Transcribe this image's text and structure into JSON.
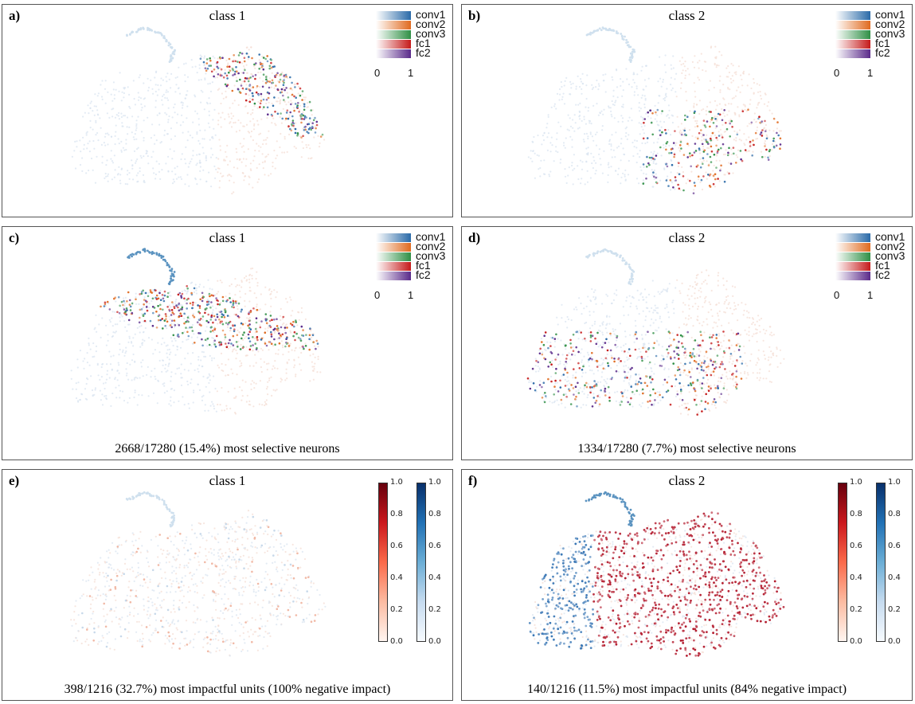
{
  "chart_data": [
    {
      "panel": "a)",
      "type": "scatter",
      "title": "class 1",
      "caption": "",
      "legend": {
        "entries": [
          "conv1",
          "conv2",
          "conv3",
          "fc1",
          "fc2"
        ],
        "colors": [
          "#2a6aa8",
          "#e06a1f",
          "#2f8f45",
          "#c51a1a",
          "#5a2a8a"
        ],
        "ticks": [
          "0",
          "1"
        ],
        "placement": "top-right"
      },
      "highlight": "top-right-band",
      "palette": "layers"
    },
    {
      "panel": "b)",
      "type": "scatter",
      "title": "class 2",
      "caption": "",
      "legend": {
        "entries": [
          "conv1",
          "conv2",
          "conv3",
          "fc1",
          "fc2"
        ],
        "colors": [
          "#2a6aa8",
          "#e06a1f",
          "#2f8f45",
          "#c51a1a",
          "#5a2a8a"
        ],
        "ticks": [
          "0",
          "1"
        ],
        "placement": "top-right"
      },
      "highlight": "bottom-right",
      "palette": "layers"
    },
    {
      "panel": "c)",
      "type": "scatter",
      "title": "class 1",
      "caption": "2668/17280 (15.4%) most selective neurons",
      "legend": {
        "entries": [
          "conv1",
          "conv2",
          "conv3",
          "fc1",
          "fc2"
        ],
        "colors": [
          "#2a6aa8",
          "#e06a1f",
          "#2f8f45",
          "#c51a1a",
          "#5a2a8a"
        ],
        "ticks": [
          "0",
          "1"
        ],
        "placement": "top-right"
      },
      "highlight": "upper-band",
      "palette": "layers"
    },
    {
      "panel": "d)",
      "type": "scatter",
      "title": "class 2",
      "caption": "1334/17280 (7.7%) most selective neurons",
      "legend": {
        "entries": [
          "conv1",
          "conv2",
          "conv3",
          "fc1",
          "fc2"
        ],
        "colors": [
          "#2a6aa8",
          "#e06a1f",
          "#2f8f45",
          "#c51a1a",
          "#5a2a8a"
        ],
        "ticks": [
          "0",
          "1"
        ],
        "placement": "top-right"
      },
      "highlight": "lower-band",
      "palette": "layers"
    },
    {
      "panel": "e)",
      "type": "scatter",
      "title": "class 1",
      "caption": "398/1216 (32.7%) most impactful units (100% negative impact)",
      "colorbars": [
        {
          "colormap": "Reds",
          "range": [
            0.0,
            1.0
          ],
          "ticks": [
            "0.0",
            "0.2",
            "0.4",
            "0.6",
            "0.8",
            "1.0"
          ]
        },
        {
          "colormap": "Blues",
          "range": [
            0.0,
            1.0
          ],
          "ticks": [
            "0.0",
            "0.2",
            "0.4",
            "0.6",
            "0.8",
            "1.0"
          ]
        }
      ],
      "highlight": "faint",
      "palette": "impact"
    },
    {
      "panel": "f)",
      "type": "scatter",
      "title": "class 2",
      "caption": "140/1216 (11.5%) most impactful units (84% negative impact)",
      "colorbars": [
        {
          "colormap": "Reds",
          "range": [
            0.0,
            1.0
          ],
          "ticks": [
            "0.0",
            "0.2",
            "0.4",
            "0.6",
            "0.8",
            "1.0"
          ]
        },
        {
          "colormap": "Blues",
          "range": [
            0.0,
            1.0
          ],
          "ticks": [
            "0.0",
            "0.2",
            "0.4",
            "0.6",
            "0.8",
            "1.0"
          ]
        }
      ],
      "highlight": "dense-red",
      "palette": "impact"
    }
  ]
}
